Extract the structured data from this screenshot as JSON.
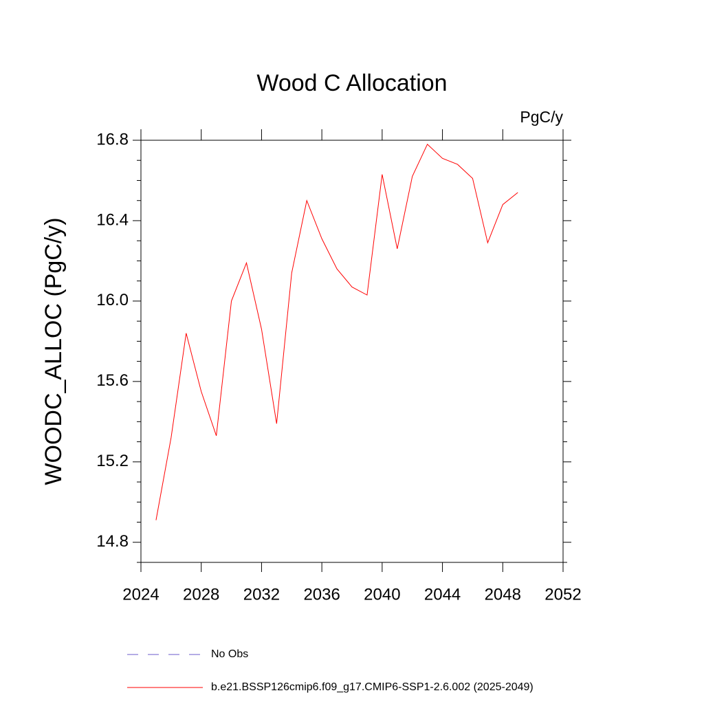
{
  "chart_data": {
    "type": "line",
    "title": "Wood C Allocation",
    "units": "PgC/y",
    "y_label": "WOODC_ALLOC  (PgC/y)",
    "x": [
      2025,
      2026,
      2027,
      2028,
      2029,
      2030,
      2031,
      2032,
      2033,
      2034,
      2035,
      2036,
      2037,
      2038,
      2039,
      2040,
      2041,
      2042,
      2043,
      2044,
      2045,
      2046,
      2047,
      2048,
      2049
    ],
    "series": [
      {
        "name": "No Obs",
        "color": "#6a5acd",
        "dashed": true,
        "values": [
          null,
          null,
          null,
          null,
          null,
          null,
          null,
          null,
          null,
          null,
          null,
          null,
          null,
          null,
          null,
          null,
          null,
          null,
          null,
          null,
          null,
          null,
          null,
          null,
          null
        ]
      },
      {
        "name": "b.e21.BSSP126cmip6.f09_g17.CMIP6-SSP1-2.6.002 (2025-2049)",
        "color": "#ff0000",
        "dashed": false,
        "values": [
          14.91,
          15.32,
          15.84,
          15.55,
          15.33,
          16.0,
          16.19,
          15.86,
          15.39,
          16.14,
          16.5,
          16.31,
          16.16,
          16.07,
          16.03,
          16.63,
          16.26,
          16.62,
          16.78,
          16.71,
          16.68,
          16.61,
          16.29,
          16.48,
          16.54
        ]
      }
    ],
    "xlim": [
      2024,
      2052
    ],
    "xticks": [
      2024,
      2028,
      2032,
      2036,
      2040,
      2044,
      2048,
      2052
    ],
    "ylim": [
      14.7,
      16.8
    ],
    "yticks": [
      {
        "value": 14.8,
        "label": "14.8"
      },
      {
        "value": 15.2,
        "label": "15.2"
      },
      {
        "value": 15.6,
        "label": "15.6"
      },
      {
        "value": 16.0,
        "label": "16.0"
      },
      {
        "value": 16.4,
        "label": "16.4"
      },
      {
        "value": 16.8,
        "label": "16.8"
      }
    ],
    "yminorticks": [
      14.7,
      14.9,
      15.0,
      15.1,
      15.3,
      15.4,
      15.5,
      15.7,
      15.8,
      15.9,
      16.1,
      16.2,
      16.3,
      16.5,
      16.6,
      16.7
    ],
    "grid": false
  }
}
